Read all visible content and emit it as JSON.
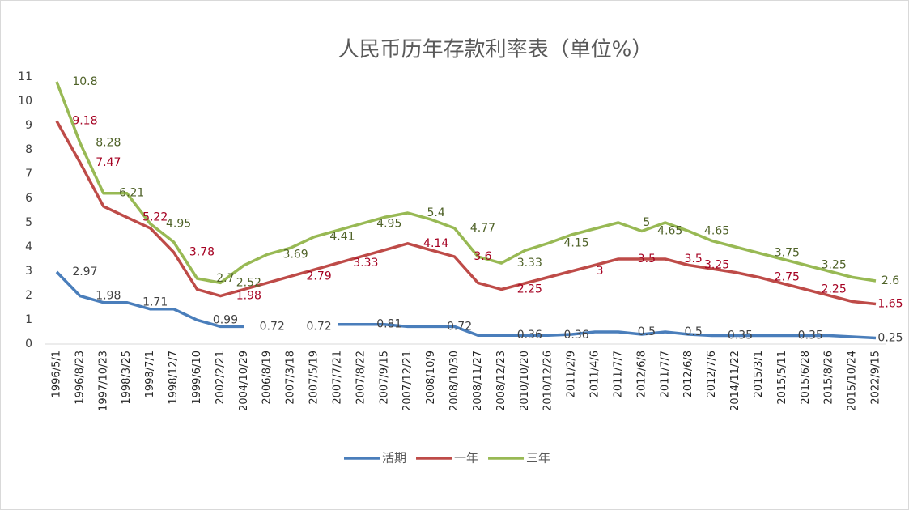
{
  "chart_data": {
    "type": "line",
    "title": "人民币历年存款利率表（单位%）",
    "categories": [
      "1996/5/1",
      "1996/8/23",
      "1997/10/23",
      "1998/3/25",
      "1998/7/1",
      "1998/12/7",
      "1999/6/10",
      "2002/2/21",
      "2004/10/29",
      "2006/8/19",
      "2007/3/18",
      "2007/5/19",
      "2007/7/21",
      "2007/8/22",
      "2007/9/15",
      "2007/12/21",
      "2008/10/9",
      "2008/10/30",
      "2008/11/27",
      "2008/12/23",
      "2010/10/20",
      "2010/12/26",
      "2011/2/9",
      "2011/4/6",
      "2011/7/7",
      "2012/6/8",
      "2011/7/7",
      "2012/6/8",
      "2012/7/6",
      "2014/11/22",
      "2015/3/1",
      "2015/5/11",
      "2015/6/28",
      "2015/8/26",
      "2015/10/24",
      "2022/9/15"
    ],
    "series": [
      {
        "name": "活期",
        "color": "#4a7ebb",
        "label_color": "#404040",
        "values": [
          2.97,
          1.98,
          1.71,
          1.71,
          1.44,
          1.44,
          0.99,
          0.72,
          0.72,
          null,
          0.72,
          null,
          0.81,
          0.81,
          0.81,
          0.72,
          0.72,
          0.72,
          0.36,
          0.36,
          0.36,
          0.36,
          0.4,
          0.5,
          0.5,
          0.4,
          0.5,
          0.4,
          0.35,
          0.35,
          0.35,
          0.35,
          0.35,
          0.35,
          0.3,
          0.25
        ],
        "value_labels": [
          "2.97",
          "1.98",
          null,
          "1.71",
          null,
          null,
          "0.99",
          null,
          "0.72",
          null,
          "0.72",
          null,
          null,
          "0.81",
          null,
          null,
          "0.72",
          null,
          null,
          "0.36",
          null,
          "0.36",
          null,
          null,
          "0.5",
          null,
          "0.5",
          null,
          "0.35",
          null,
          null,
          "0.35",
          null,
          null,
          null,
          "0.25"
        ]
      },
      {
        "name": "一年",
        "color": "#be4b48",
        "label_color": "#a50021",
        "values": [
          9.18,
          7.47,
          5.67,
          5.22,
          4.77,
          3.78,
          2.25,
          1.98,
          2.25,
          2.52,
          2.79,
          3.06,
          3.33,
          3.6,
          3.87,
          4.14,
          3.87,
          3.6,
          2.52,
          2.25,
          2.5,
          2.75,
          3,
          3.25,
          3.5,
          3.5,
          3.5,
          3.25,
          3.1,
          2.95,
          2.75,
          2.5,
          2.25,
          2,
          1.75,
          1.65
        ],
        "value_labels": [
          "9.18",
          "7.47",
          null,
          "5.22",
          null,
          "3.78",
          null,
          "1.98",
          null,
          null,
          "2.79",
          null,
          "3.33",
          null,
          null,
          "4.14",
          null,
          "3.6",
          null,
          "2.25",
          null,
          null,
          "3",
          null,
          "3.5",
          null,
          "3.5",
          "3.25",
          null,
          null,
          "2.75",
          null,
          "2.25",
          null,
          null,
          "1.65"
        ]
      },
      {
        "name": "三年",
        "color": "#98b954",
        "label_color": "#4f6228",
        "values": [
          10.8,
          8.28,
          6.21,
          6.21,
          4.95,
          4.2,
          2.7,
          2.52,
          3.24,
          3.69,
          3.96,
          4.41,
          4.68,
          4.95,
          5.22,
          5.4,
          5.13,
          4.77,
          3.6,
          3.33,
          3.85,
          4.15,
          4.5,
          4.75,
          5,
          4.65,
          5,
          4.65,
          4.25,
          4,
          3.75,
          3.5,
          3.25,
          3,
          2.75,
          2.6
        ],
        "value_labels": [
          "10.8",
          "8.28",
          "6.21",
          null,
          "4.95",
          null,
          "2.7",
          "2.52",
          null,
          "3.69",
          null,
          "4.41",
          null,
          "4.95",
          null,
          "5.4",
          null,
          "4.77",
          null,
          "3.33",
          null,
          "4.15",
          null,
          null,
          "5",
          "4.65",
          null,
          "4.65",
          null,
          null,
          "3.75",
          null,
          "3.25",
          null,
          null,
          "2.6"
        ]
      }
    ],
    "ylim": [
      0,
      11
    ],
    "yticks": [
      0,
      1,
      2,
      3,
      4,
      5,
      6,
      7,
      8,
      9,
      10,
      11
    ],
    "grid": false,
    "legend": "bottom"
  }
}
